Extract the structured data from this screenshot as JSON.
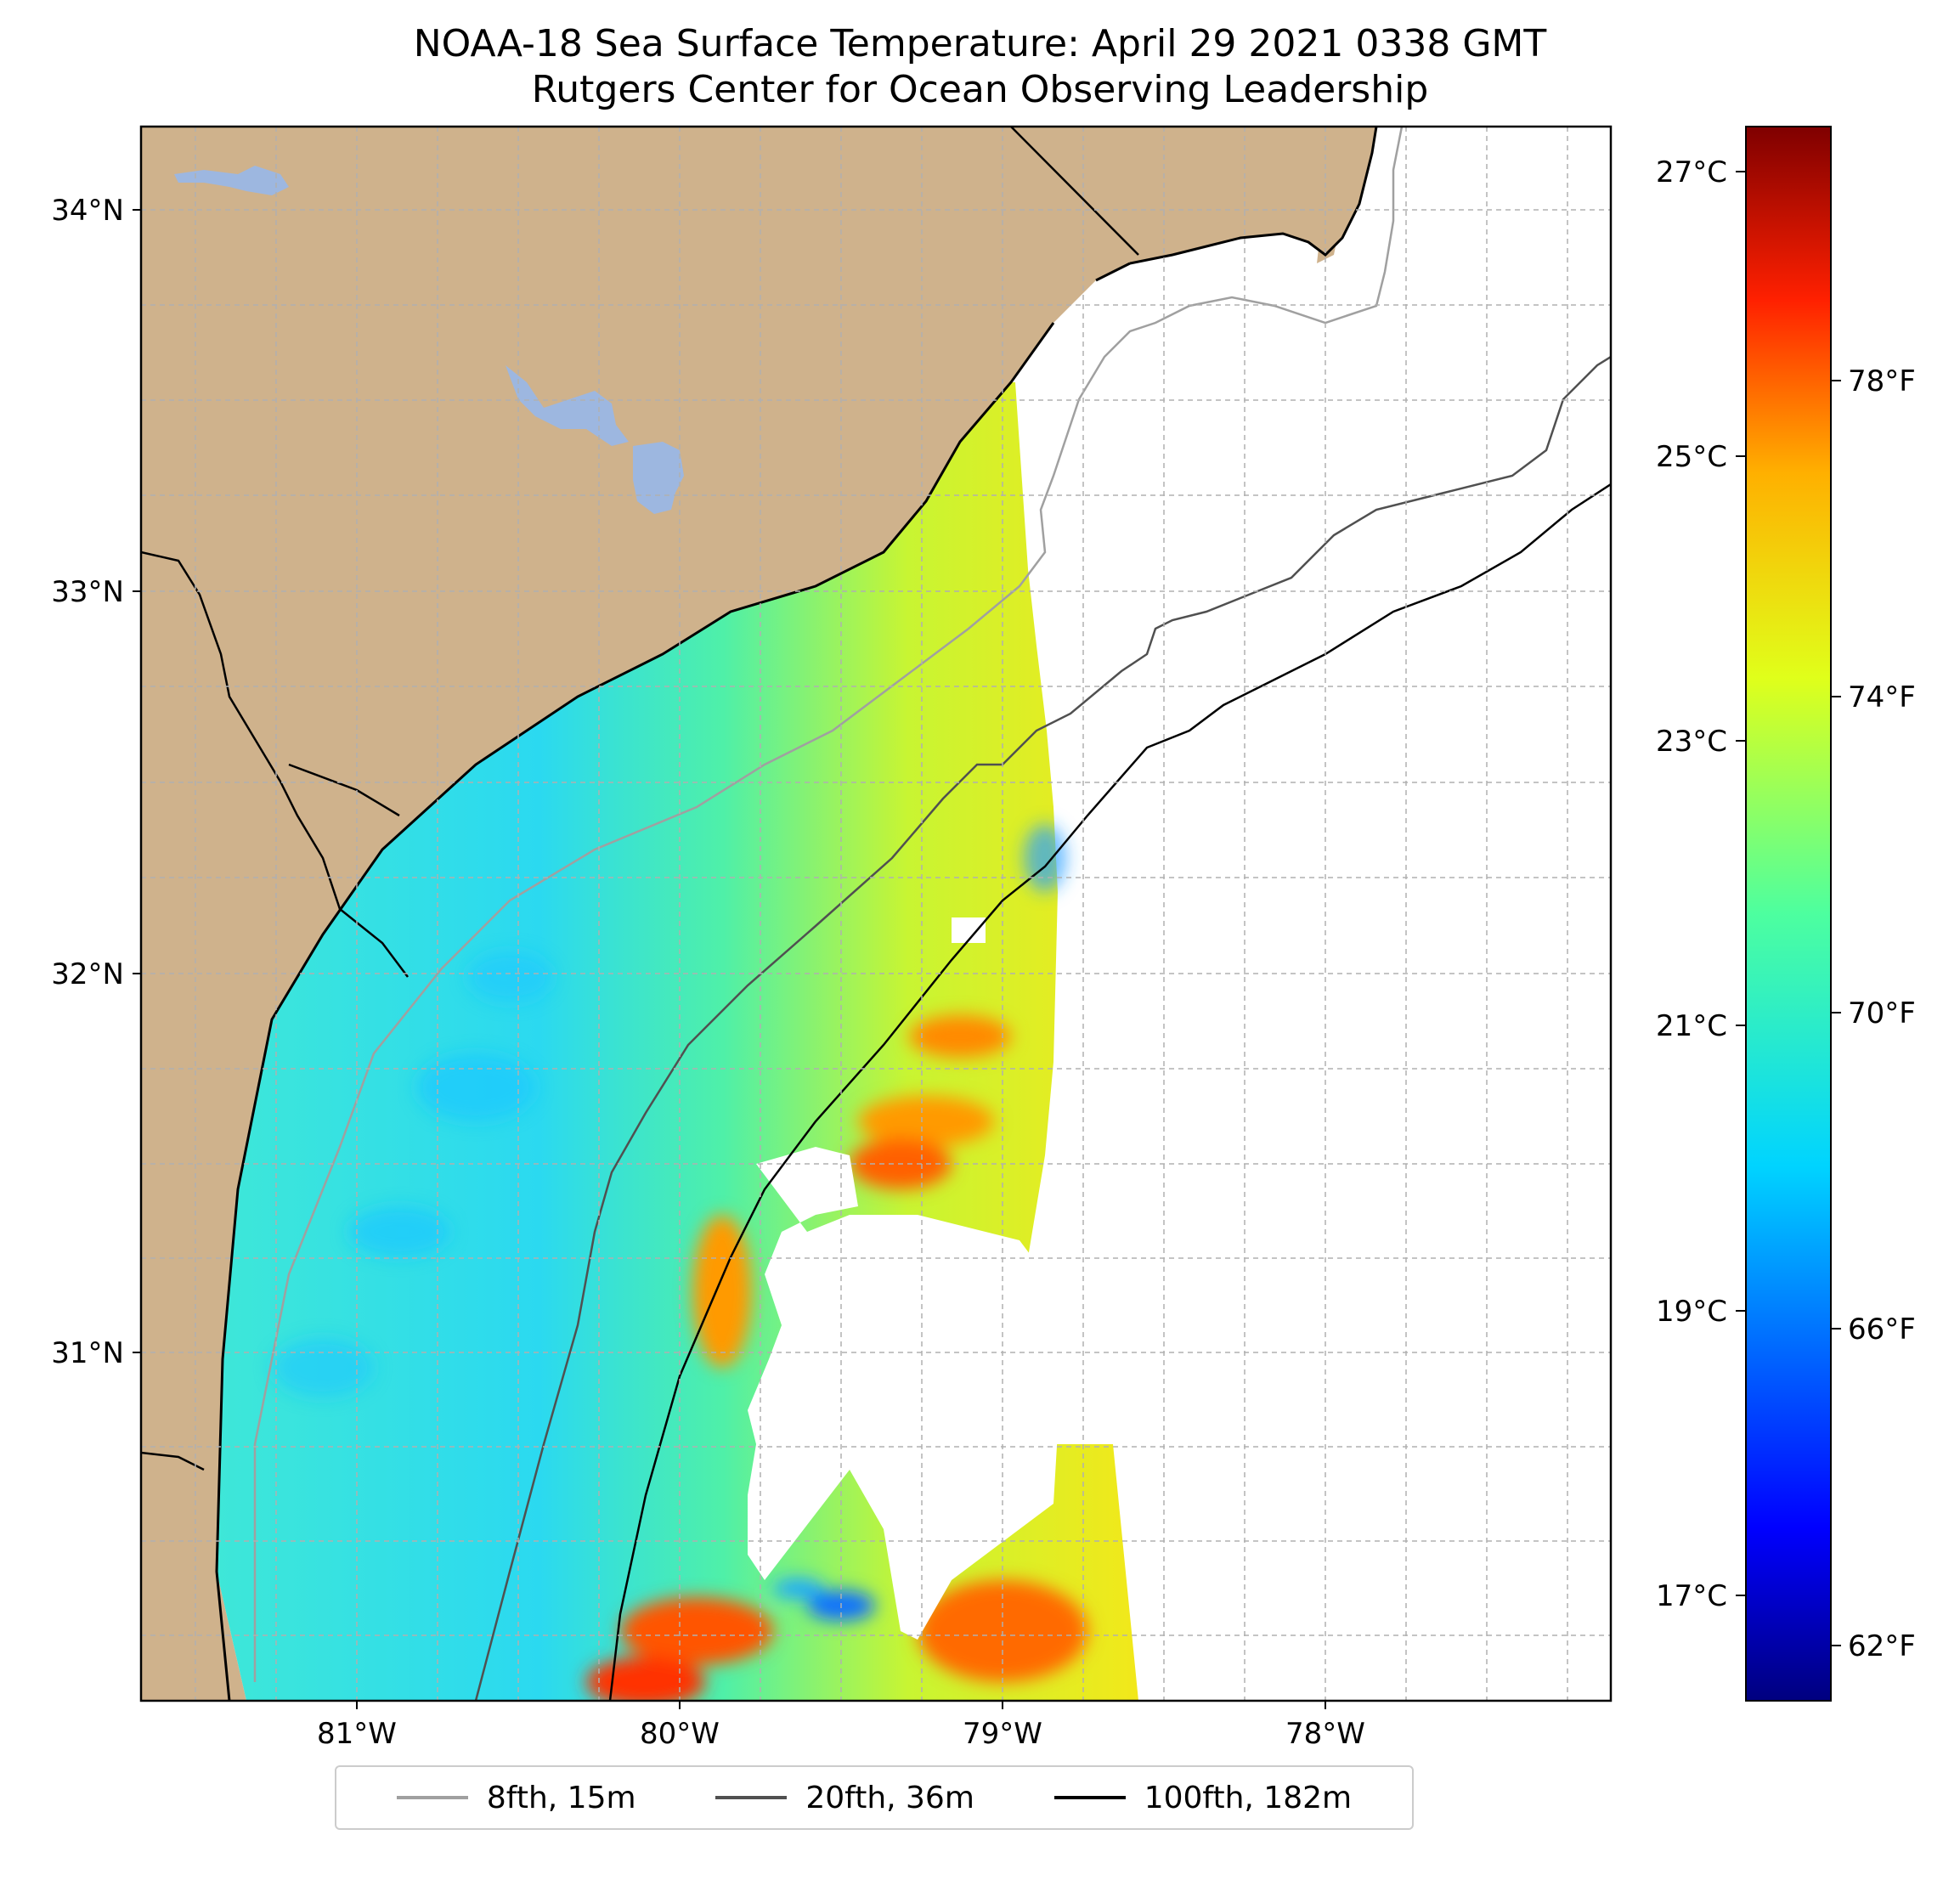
{
  "title": {
    "line1": "NOAA-18 Sea Surface Temperature: April 29 2021 0338 GMT",
    "line2": "Rutgers Center for Ocean Observing Leadership"
  },
  "axes": {
    "lat_labels": [
      "34°N",
      "33°N",
      "32°N",
      "31°N"
    ],
    "lon_labels": [
      "81°W",
      "80°W",
      "79°W",
      "78°W"
    ]
  },
  "colorbar": {
    "celsius_labels": [
      "27°C",
      "25°C",
      "23°C",
      "21°C",
      "19°C",
      "17°C"
    ],
    "fahrenheit_labels": [
      "78°F",
      "74°F",
      "70°F",
      "66°F",
      "62°F"
    ],
    "colormap": "jet",
    "range_c": [
      16.4,
      27.5
    ]
  },
  "legend": {
    "items": [
      {
        "label": "8fth, 15m",
        "color": "#a0a0a0"
      },
      {
        "label": "20fth, 36m",
        "color": "#505050"
      },
      {
        "label": "100fth, 182m",
        "color": "#000000"
      }
    ]
  },
  "colors": {
    "land": "#cfb28c",
    "lake": "#9db7e0",
    "ocean_nodata": "#ffffff",
    "grid": "#b0b0b0"
  }
}
